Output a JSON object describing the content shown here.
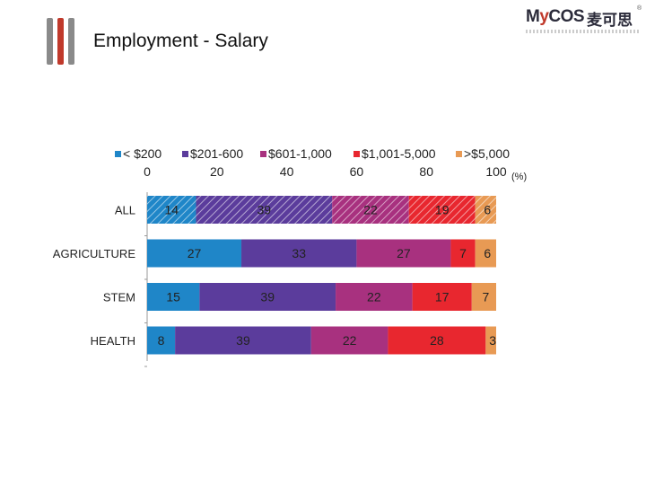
{
  "slide": {
    "title": "Employment - Salary"
  },
  "brand": {
    "name_prefix": "M",
    "name_accent": "y",
    "name_suffix": "COS",
    "chinese": "麦可思",
    "registered": "®"
  },
  "colors": {
    "logo_bars": [
      "#8a8a8a",
      "#c0392b",
      "#8a8a8a"
    ]
  },
  "chart_data": {
    "type": "bar",
    "orientation": "horizontal",
    "stacked": true,
    "title": "",
    "unit_label": "(%)",
    "xlim": [
      0,
      100
    ],
    "x_ticks": [
      0,
      20,
      40,
      60,
      80,
      100
    ],
    "categories": [
      "ALL",
      "AGRICULTURE",
      "STEM",
      "HEALTH"
    ],
    "legend_position": "top",
    "grid": false,
    "series": [
      {
        "name": "< $200",
        "color": "#1f86c8",
        "values": [
          14,
          27,
          15,
          8
        ]
      },
      {
        "name": "$201-600",
        "color": "#5b3c9c",
        "values": [
          39,
          33,
          39,
          39
        ]
      },
      {
        "name": "$601-1,000",
        "color": "#a8317f",
        "values": [
          22,
          27,
          22,
          22
        ]
      },
      {
        "name": "$1,001-5,000",
        "color": "#e8272f",
        "values": [
          19,
          7,
          17,
          28
        ]
      },
      {
        "name": ">$5,000",
        "color": "#e89a54",
        "values": [
          6,
          6,
          7,
          3
        ]
      }
    ],
    "hatched_category": "ALL"
  }
}
